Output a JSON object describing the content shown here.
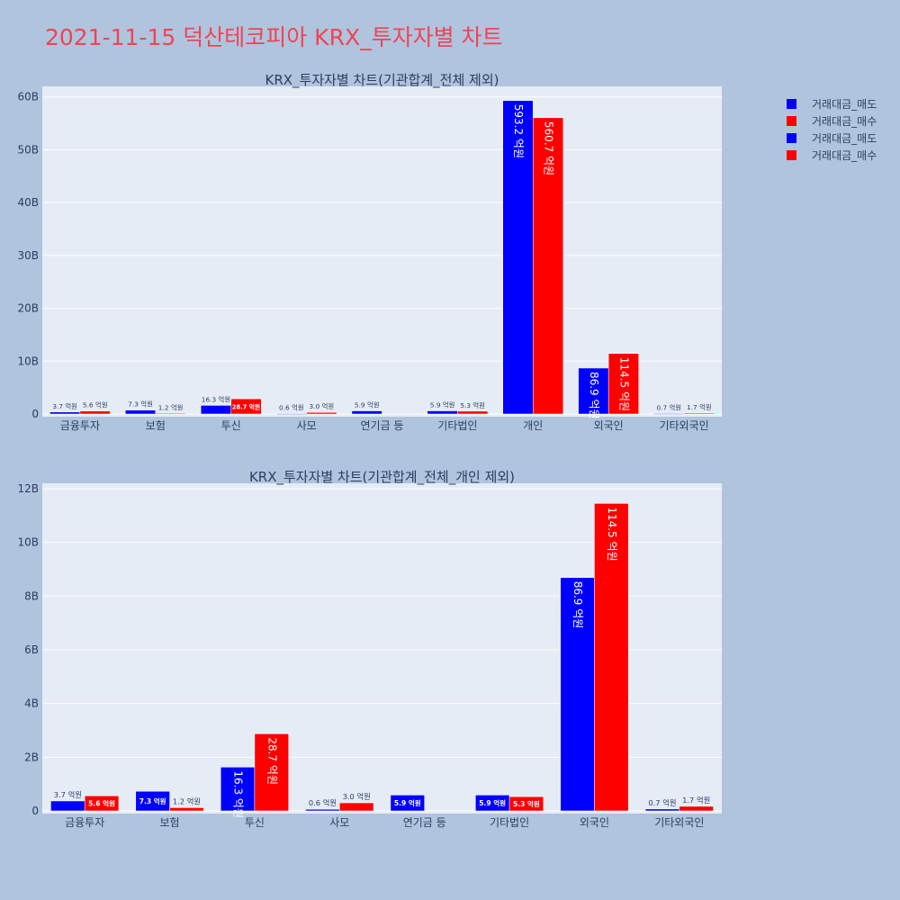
{
  "page": {
    "title": "2021-11-15 덕산테코피아 KRX_투자자별 차트",
    "background": "#b0c4de",
    "plot_background": "#e5ecf6"
  },
  "legend": [
    {
      "label": "거래대금_매도",
      "color": "#0000ff"
    },
    {
      "label": "거래대금_매수",
      "color": "#ff0000"
    },
    {
      "label": "거래대금_매도",
      "color": "#0000ff"
    },
    {
      "label": "거래대금_매수",
      "color": "#ff0000"
    }
  ],
  "chart_data": [
    {
      "type": "bar",
      "title": "KRX_투자자별 차트(기관합계_전체 제외)",
      "categories": [
        "금융투자",
        "보험",
        "투신",
        "사모",
        "연기금 등",
        "기타법인",
        "개인",
        "외국인",
        "기타외국인"
      ],
      "ylim": [
        0,
        62
      ],
      "yticks": [
        0,
        10,
        20,
        30,
        40,
        50,
        60
      ],
      "ytick_labels": [
        "0",
        "10B",
        "20B",
        "30B",
        "40B",
        "50B",
        "60B"
      ],
      "grid": true,
      "series": [
        {
          "name": "거래대금_매도",
          "color": "#0000ff",
          "values": [
            0.37,
            0.73,
            1.63,
            0.06,
            0.59,
            0.59,
            59.32,
            8.69,
            0.07
          ],
          "labels": [
            "3.7 억원",
            "7.3 억원",
            "16.3 억원",
            "0.6 억원",
            "5.9 억원",
            "5.9 억원",
            "593.2 억원",
            "86.9 억원",
            "0.7 억원"
          ]
        },
        {
          "name": "거래대금_매수",
          "color": "#ff0000",
          "values": [
            0.56,
            0.12,
            2.87,
            0.3,
            0,
            0.53,
            56.07,
            11.45,
            0.17
          ],
          "labels": [
            "5.6 억원",
            "1.2 억원",
            "28.7 억원",
            "3.0 억원",
            "",
            "5.3 억원",
            "560.7 억원",
            "114.5 억원",
            "1.7 억원"
          ]
        }
      ]
    },
    {
      "type": "bar",
      "title": "KRX_투자자별 차트(기관합계_전체_개인 제외)",
      "categories": [
        "금융투자",
        "보험",
        "투신",
        "사모",
        "연기금 등",
        "기타법인",
        "외국인",
        "기타외국인"
      ],
      "ylim": [
        0,
        12.2
      ],
      "yticks": [
        0,
        2,
        4,
        6,
        8,
        10,
        12
      ],
      "ytick_labels": [
        "0",
        "2B",
        "4B",
        "6B",
        "8B",
        "10B",
        "12B"
      ],
      "grid": true,
      "series": [
        {
          "name": "거래대금_매도",
          "color": "#0000ff",
          "values": [
            0.37,
            0.73,
            1.63,
            0.06,
            0.59,
            0.59,
            8.69,
            0.07
          ],
          "labels": [
            "3.7 억원",
            "7.3 억원",
            "16.3 억원",
            "0.6 억원",
            "5.9 억원",
            "5.9 억원",
            "86.9 억원",
            "0.7 억원"
          ]
        },
        {
          "name": "거래대금_매수",
          "color": "#ff0000",
          "values": [
            0.56,
            0.12,
            2.87,
            0.3,
            0,
            0.53,
            11.45,
            0.17
          ],
          "labels": [
            "5.6 억원",
            "1.2 억원",
            "28.7 억원",
            "3.0 억원",
            "",
            "5.3 억원",
            "114.5 억원",
            "1.7 억원"
          ]
        }
      ]
    }
  ]
}
